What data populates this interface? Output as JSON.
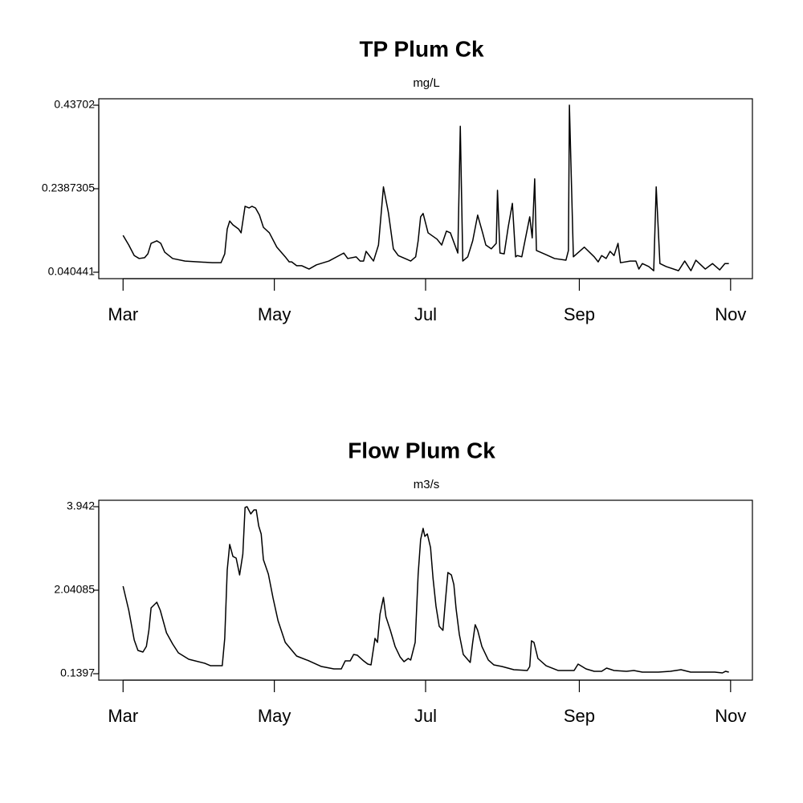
{
  "chart_data": [
    {
      "type": "line",
      "title": "TP Plum Ck",
      "subtitle": "mg/L",
      "color": "#000000",
      "x": [
        0,
        2.3,
        4.5,
        6.5,
        8.7,
        10,
        11.3,
        13.6,
        15.2,
        16.8,
        20,
        25,
        36,
        39.5,
        41,
        42,
        43,
        44.3,
        46.6,
        47.6,
        49.2,
        50.8,
        52,
        53.4,
        55,
        56.6,
        59,
        62,
        65.4,
        67,
        68,
        70,
        72,
        75,
        78,
        83,
        89,
        90.6,
        94,
        95.6,
        97,
        98,
        101,
        103,
        105,
        107,
        109,
        111,
        116,
        118,
        119,
        120,
        121,
        123,
        126.6,
        128.5,
        130.4,
        132,
        135,
        136,
        137,
        139,
        141,
        143,
        145,
        146.3,
        148.5,
        150.5,
        151,
        152,
        153.7,
        155.3,
        157,
        158.3,
        159,
        160.8,
        164,
        165,
        166,
        166.7,
        170.6,
        174,
        178.6,
        179.6,
        180,
        181.6,
        186,
        190,
        191.6,
        193,
        194.8,
        196.4,
        198,
        199.6,
        200.6,
        204.5,
        206.8,
        208,
        209.4,
        212,
        214,
        215,
        216.5,
        219,
        224,
        226.5,
        229,
        231,
        234.8,
        237.7,
        240.6,
        242.7,
        244.3
      ],
      "values": [
        0.128,
        0.105,
        0.08,
        0.073,
        0.075,
        0.084,
        0.109,
        0.115,
        0.109,
        0.088,
        0.073,
        0.067,
        0.063,
        0.063,
        0.084,
        0.143,
        0.162,
        0.153,
        0.143,
        0.134,
        0.197,
        0.193,
        0.197,
        0.193,
        0.176,
        0.147,
        0.134,
        0.1,
        0.077,
        0.065,
        0.065,
        0.056,
        0.056,
        0.048,
        0.058,
        0.067,
        0.086,
        0.073,
        0.077,
        0.067,
        0.067,
        0.09,
        0.067,
        0.105,
        0.243,
        0.182,
        0.096,
        0.08,
        0.067,
        0.077,
        0.115,
        0.172,
        0.18,
        0.134,
        0.119,
        0.105,
        0.138,
        0.134,
        0.086,
        0.387,
        0.067,
        0.077,
        0.115,
        0.176,
        0.134,
        0.105,
        0.096,
        0.109,
        0.235,
        0.086,
        0.084,
        0.147,
        0.204,
        0.077,
        0.08,
        0.077,
        0.172,
        0.122,
        0.262,
        0.092,
        0.082,
        0.073,
        0.069,
        0.092,
        0.437,
        0.077,
        0.1,
        0.077,
        0.065,
        0.08,
        0.073,
        0.09,
        0.08,
        0.109,
        0.063,
        0.067,
        0.067,
        0.048,
        0.061,
        0.054,
        0.044,
        0.243,
        0.061,
        0.054,
        0.044,
        0.067,
        0.044,
        0.069,
        0.048,
        0.061,
        0.046,
        0.061,
        0.061
      ],
      "xlim": [
        -9.8,
        253.8
      ],
      "xticks": [
        {
          "value": 0,
          "label": "Mar"
        },
        {
          "value": 61,
          "label": "May"
        },
        {
          "value": 122,
          "label": "Jul"
        },
        {
          "value": 184,
          "label": "Sep"
        },
        {
          "value": 245,
          "label": "Nov"
        }
      ],
      "ylim": [
        0.0252,
        0.4523
      ],
      "yticks": [
        0.040441,
        0.2387305,
        0.43702
      ]
    },
    {
      "type": "line",
      "title": "Flow Plum Ck",
      "subtitle": "m3/s",
      "color": "#000000",
      "x": [
        0,
        2.3,
        4.5,
        6,
        8,
        9.4,
        10.4,
        11.3,
        13.6,
        15,
        17.5,
        20,
        22.3,
        26.5,
        33,
        35.3,
        40,
        41,
        42,
        43,
        44.3,
        45.6,
        47,
        48.3,
        49.2,
        50,
        51.5,
        52.8,
        53.7,
        54.7,
        55.7,
        56.6,
        58.6,
        60.5,
        62.5,
        65.4,
        70,
        75,
        80,
        85,
        88,
        89.6,
        91.6,
        93,
        94.5,
        97,
        98.7,
        100,
        101.6,
        102.6,
        103.6,
        105,
        106,
        107.8,
        109.7,
        111.7,
        113.3,
        115,
        116,
        117.8,
        119,
        120,
        121,
        121.7,
        122.7,
        124,
        125,
        126.2,
        127.5,
        129,
        130,
        131,
        132.4,
        133.4,
        134.3,
        135.6,
        137.2,
        140,
        141,
        142,
        143,
        144.7,
        147.3,
        149.5,
        152.8,
        157.6,
        163,
        164,
        164.7,
        165.7,
        167.3,
        170.6,
        175.4,
        181.9,
        183.5,
        186.7,
        190,
        193,
        195,
        198,
        203,
        206,
        209.4,
        215.9,
        220.7,
        225,
        228.9,
        238.6,
        241.7,
        243,
        244.3
      ],
      "values": [
        2.132,
        1.584,
        0.907,
        0.67,
        0.633,
        0.761,
        1.127,
        1.639,
        1.767,
        1.584,
        1.072,
        0.816,
        0.615,
        0.469,
        0.377,
        0.322,
        0.322,
        0.944,
        2.498,
        3.083,
        2.809,
        2.772,
        2.388,
        2.863,
        3.924,
        3.942,
        3.777,
        3.869,
        3.869,
        3.503,
        3.321,
        2.735,
        2.406,
        1.858,
        1.346,
        0.853,
        0.542,
        0.432,
        0.304,
        0.249,
        0.249,
        0.432,
        0.432,
        0.579,
        0.56,
        0.432,
        0.359,
        0.341,
        0.944,
        0.853,
        1.492,
        1.876,
        1.438,
        1.127,
        0.761,
        0.524,
        0.414,
        0.487,
        0.451,
        0.853,
        2.406,
        3.193,
        3.448,
        3.266,
        3.321,
        3.01,
        2.315,
        1.675,
        1.218,
        1.127,
        1.803,
        2.443,
        2.388,
        2.169,
        1.62,
        1.035,
        0.579,
        0.396,
        0.853,
        1.255,
        1.127,
        0.761,
        0.451,
        0.341,
        0.304,
        0.231,
        0.213,
        0.304,
        0.889,
        0.853,
        0.487,
        0.322,
        0.213,
        0.213,
        0.359,
        0.249,
        0.195,
        0.195,
        0.268,
        0.213,
        0.195,
        0.213,
        0.176,
        0.176,
        0.195,
        0.231,
        0.176,
        0.176,
        0.158,
        0.195,
        0.176
      ],
      "xlim": [
        -9.8,
        253.8
      ],
      "xticks": [
        {
          "value": 0,
          "label": "Mar"
        },
        {
          "value": 61,
          "label": "May"
        },
        {
          "value": 122,
          "label": "Jul"
        },
        {
          "value": 184,
          "label": "Sep"
        },
        {
          "value": 245,
          "label": "Nov"
        }
      ],
      "ylim": [
        -0.0065,
        4.0882
      ],
      "yticks": [
        0.1397,
        2.04085,
        3.942
      ]
    }
  ]
}
